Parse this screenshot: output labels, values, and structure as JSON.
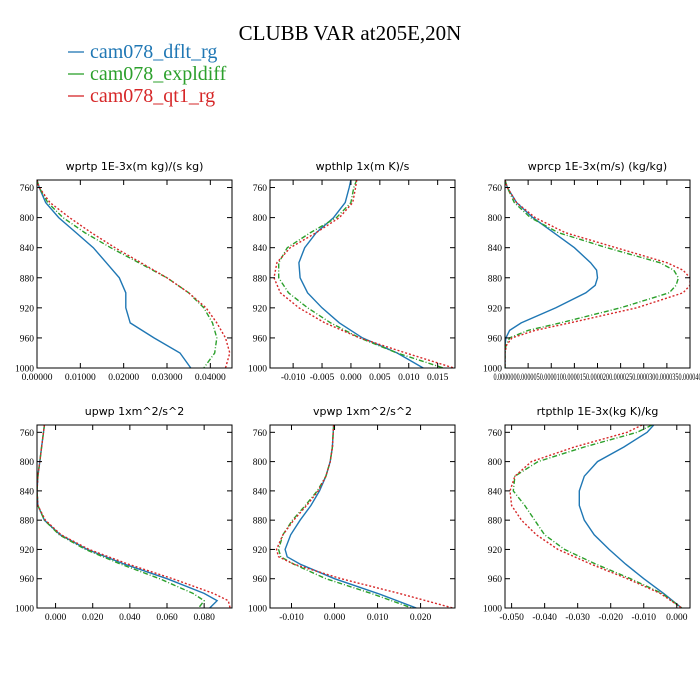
{
  "figure": {
    "title": "CLUBB VAR at205E,20N"
  },
  "legend": [
    {
      "name": "cam078_dflt_rg",
      "color": "#1f77b4",
      "dash": "solid"
    },
    {
      "name": "cam078_expldiff",
      "color": "#2ca02c",
      "dash": "dashdot"
    },
    {
      "name": "cam078_qt1_rg",
      "color": "#d62728",
      "dash": "dot"
    }
  ],
  "chart_data": [
    {
      "type": "line",
      "title": "wprtp  1E-3x(m kg)/(s kg)",
      "xlim": [
        0,
        0.045
      ],
      "ylim": [
        1000,
        750
      ],
      "xticks": [
        0,
        0.01,
        0.02,
        0.03,
        0.04
      ],
      "xtick_labels": [
        "0.00000",
        "0.01000",
        "0.02000",
        "0.03000",
        "0.04000"
      ],
      "yticks": [
        760,
        800,
        840,
        880,
        920,
        960,
        1000
      ],
      "y": [
        750,
        760,
        780,
        800,
        820,
        840,
        860,
        880,
        900,
        920,
        940,
        960,
        980,
        1000
      ],
      "series": [
        {
          "name": "cam078_dflt_rg",
          "values": [
            0.0,
            0.0005,
            0.002,
            0.005,
            0.009,
            0.013,
            0.016,
            0.019,
            0.0205,
            0.0205,
            0.0215,
            0.027,
            0.033,
            0.0355
          ]
        },
        {
          "name": "cam078_expldiff",
          "values": [
            0.0,
            0.0005,
            0.0025,
            0.006,
            0.011,
            0.017,
            0.0235,
            0.03,
            0.035,
            0.0385,
            0.0405,
            0.0415,
            0.041,
            0.0385
          ]
        },
        {
          "name": "cam078_qt1_rg",
          "values": [
            0.0,
            0.0005,
            0.003,
            0.0075,
            0.0125,
            0.018,
            0.024,
            0.03,
            0.035,
            0.039,
            0.0415,
            0.0435,
            0.0445,
            0.0435
          ]
        }
      ]
    },
    {
      "type": "line",
      "title": "wpthlp  1x(m K)/s",
      "xlim": [
        -0.014,
        0.018
      ],
      "ylim": [
        1000,
        750
      ],
      "xticks": [
        -0.01,
        -0.005,
        0,
        0.005,
        0.01,
        0.015
      ],
      "xtick_labels": [
        "-0.010",
        "-0.005",
        "0.000",
        "0.005",
        "0.010",
        "0.015"
      ],
      "yticks": [
        760,
        800,
        840,
        880,
        920,
        960,
        1000
      ],
      "y": [
        750,
        760,
        780,
        800,
        820,
        840,
        860,
        880,
        900,
        920,
        940,
        960,
        980,
        1000
      ],
      "series": [
        {
          "name": "cam078_dflt_rg",
          "values": [
            0.0,
            -0.0003,
            -0.001,
            -0.003,
            -0.006,
            -0.008,
            -0.009,
            -0.0088,
            -0.0075,
            -0.005,
            -0.002,
            0.002,
            0.008,
            0.0125
          ]
        },
        {
          "name": "cam078_expldiff",
          "values": [
            0.001,
            0.0005,
            0.0,
            -0.0025,
            -0.007,
            -0.011,
            -0.0125,
            -0.0125,
            -0.0108,
            -0.0075,
            -0.0035,
            0.0015,
            0.008,
            0.016
          ]
        },
        {
          "name": "cam078_qt1_rg",
          "values": [
            0.001,
            0.0008,
            0.0003,
            -0.002,
            -0.006,
            -0.0105,
            -0.0128,
            -0.0133,
            -0.0122,
            -0.009,
            -0.0045,
            0.0015,
            0.0095,
            0.0178
          ]
        }
      ]
    },
    {
      "type": "line",
      "title": "wprcp  1E-3x(m/s) (kg/kg)",
      "xlim": [
        0,
        4e-05
      ],
      "ylim": [
        1000,
        750
      ],
      "xticks": [
        0,
        5e-06,
        1e-05,
        1.5e-05,
        2e-05,
        2.5e-05,
        3e-05,
        3.5e-05,
        4e-05
      ],
      "xtick_labels": [
        "0.000000",
        "0.000005",
        "0.000010",
        "0.000015",
        "0.000020",
        "0.000025",
        "0.000030",
        "0.000035",
        "0.000040"
      ],
      "yticks": [
        760,
        800,
        840,
        880,
        920,
        960,
        1000
      ],
      "y": [
        750,
        760,
        780,
        800,
        820,
        840,
        860,
        870,
        880,
        890,
        900,
        920,
        940,
        950,
        960,
        970,
        980,
        1000
      ],
      "series": [
        {
          "name": "cam078_dflt_rg",
          "values": [
            0.0,
            5e-07,
            2.5e-06,
            6e-06,
            1.05e-05,
            1.5e-05,
            1.85e-05,
            1.98e-05,
            2e-05,
            1.95e-05,
            1.75e-05,
            1.1e-05,
            3.5e-06,
            1e-06,
            2e-07,
            0.0,
            0.0,
            0.0
          ]
        },
        {
          "name": "cam078_expldiff",
          "values": [
            0.0,
            5e-07,
            2e-06,
            5.5e-06,
            1.15e-05,
            2.2e-05,
            3.35e-05,
            3.65e-05,
            3.75e-05,
            3.7e-05,
            3.55e-05,
            2.5e-05,
            1.2e-05,
            5e-06,
            1e-06,
            2e-07,
            0.0,
            0.0
          ]
        },
        {
          "name": "cam078_qt1_rg",
          "values": [
            0.0,
            5e-07,
            2.5e-06,
            6.5e-06,
            1.3e-05,
            2.4e-05,
            3.5e-05,
            3.85e-05,
            4e-05,
            4e-05,
            3.85e-05,
            2.85e-05,
            1.4e-05,
            6.5e-06,
            1.5e-06,
            3e-07,
            0.0,
            0.0
          ]
        }
      ]
    },
    {
      "type": "line",
      "title": "upwp  1xm^2/s^2",
      "xlim": [
        -0.01,
        0.095
      ],
      "ylim": [
        1000,
        750
      ],
      "xticks": [
        0,
        0.02,
        0.04,
        0.06,
        0.08
      ],
      "xtick_labels": [
        "0.000",
        "0.020",
        "0.040",
        "0.060",
        "0.080"
      ],
      "yticks": [
        760,
        800,
        840,
        880,
        920,
        960,
        1000
      ],
      "y": [
        750,
        760,
        780,
        800,
        820,
        840,
        860,
        880,
        900,
        920,
        940,
        960,
        980,
        990,
        1000
      ],
      "series": [
        {
          "name": "cam078_dflt_rg",
          "values": [
            -0.006,
            -0.0065,
            -0.0075,
            -0.0085,
            -0.0095,
            -0.01,
            -0.0095,
            -0.006,
            0.0025,
            0.017,
            0.037,
            0.06,
            0.08,
            0.087,
            0.083
          ]
        },
        {
          "name": "cam078_expldiff",
          "values": [
            -0.006,
            -0.0065,
            -0.0075,
            -0.0085,
            -0.0095,
            -0.01,
            -0.0095,
            -0.006,
            0.002,
            0.016,
            0.035,
            0.056,
            0.074,
            0.08,
            0.077
          ]
        },
        {
          "name": "cam078_qt1_rg",
          "values": [
            -0.006,
            -0.0065,
            -0.0075,
            -0.0085,
            -0.0095,
            -0.01,
            -0.0095,
            -0.0055,
            0.003,
            0.018,
            0.039,
            0.063,
            0.085,
            0.093,
            0.094
          ]
        }
      ]
    },
    {
      "type": "line",
      "title": "vpwp  1xm^2/s^2",
      "xlim": [
        -0.015,
        0.028
      ],
      "ylim": [
        1000,
        750
      ],
      "xticks": [
        -0.01,
        0,
        0.01,
        0.02
      ],
      "xtick_labels": [
        "-0.010",
        "0.000",
        "0.010",
        "0.020"
      ],
      "yticks": [
        760,
        800,
        840,
        880,
        920,
        960,
        1000
      ],
      "y": [
        750,
        760,
        780,
        800,
        820,
        840,
        860,
        880,
        900,
        920,
        930,
        940,
        960,
        980,
        1000
      ],
      "series": [
        {
          "name": "cam078_dflt_rg",
          "values": [
            -0.0002,
            -0.0003,
            -0.0005,
            -0.001,
            -0.002,
            -0.0035,
            -0.0055,
            -0.008,
            -0.0102,
            -0.0115,
            -0.011,
            -0.008,
            0.0,
            0.01,
            0.019
          ]
        },
        {
          "name": "cam078_expldiff",
          "values": [
            -0.0002,
            -0.0003,
            -0.0005,
            -0.001,
            -0.002,
            -0.004,
            -0.0068,
            -0.0098,
            -0.012,
            -0.013,
            -0.0125,
            -0.0095,
            -0.002,
            0.0085,
            0.018
          ]
        },
        {
          "name": "cam078_qt1_rg",
          "values": [
            -0.0002,
            -0.0003,
            -0.0005,
            -0.001,
            -0.002,
            -0.0038,
            -0.0065,
            -0.0095,
            -0.012,
            -0.0135,
            -0.013,
            -0.0095,
            0.0015,
            0.015,
            0.0275
          ]
        }
      ]
    },
    {
      "type": "line",
      "title": "rtpthlp  1E-3x(kg K)/kg",
      "xlim": [
        -0.052,
        0.004
      ],
      "ylim": [
        1000,
        750
      ],
      "xticks": [
        -0.05,
        -0.04,
        -0.03,
        -0.02,
        -0.01,
        0
      ],
      "xtick_labels": [
        "-0.050",
        "-0.040",
        "-0.030",
        "-0.020",
        "-0.010",
        "0.000"
      ],
      "yticks": [
        760,
        800,
        840,
        880,
        920,
        960,
        1000
      ],
      "y": [
        750,
        760,
        780,
        800,
        820,
        840,
        860,
        880,
        900,
        920,
        940,
        960,
        980,
        1000
      ],
      "series": [
        {
          "name": "cam078_dflt_rg",
          "values": [
            -0.007,
            -0.009,
            -0.016,
            -0.024,
            -0.028,
            -0.0295,
            -0.0295,
            -0.028,
            -0.025,
            -0.0205,
            -0.0155,
            -0.01,
            -0.004,
            0.0015
          ]
        },
        {
          "name": "cam078_expldiff",
          "values": [
            -0.0075,
            -0.012,
            -0.028,
            -0.042,
            -0.049,
            -0.0495,
            -0.046,
            -0.043,
            -0.04,
            -0.034,
            -0.0245,
            -0.014,
            -0.0045,
            0.0015
          ]
        },
        {
          "name": "cam078_qt1_rg",
          "values": [
            -0.0105,
            -0.015,
            -0.031,
            -0.044,
            -0.049,
            -0.0505,
            -0.05,
            -0.047,
            -0.0425,
            -0.036,
            -0.026,
            -0.015,
            -0.005,
            0.0015
          ]
        }
      ]
    }
  ]
}
